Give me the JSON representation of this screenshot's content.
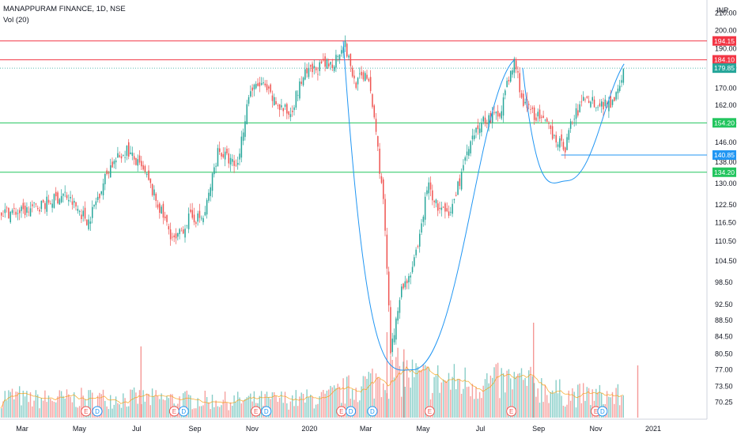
{
  "header": {
    "symbol_line": "MANAPPURAM FINANCE, 1D, NSE",
    "volume_line": "Vol (20)"
  },
  "currency": "INR",
  "colors": {
    "up": "#26a69a",
    "down": "#ef5350",
    "resistance": "#f23645",
    "support": "#22c55e",
    "cup_curve": "#2196f3",
    "price_tag": "#26a69a",
    "volume_ma": "#f59e0b"
  },
  "chart_data": {
    "type": "candlestick",
    "title": "MANAPPURAM FINANCE, 1D, NSE",
    "ylabel": "INR",
    "y_scale": "log",
    "ylim": [
      67,
      214
    ],
    "y_ticks": [
      210.0,
      200.0,
      190.0,
      180.0,
      170.0,
      162.0,
      154.0,
      146.0,
      138.0,
      130.0,
      122.5,
      116.5,
      110.5,
      104.5,
      98.5,
      92.5,
      88.5,
      84.5,
      80.5,
      77.0,
      73.5,
      70.25
    ],
    "x_labels": [
      "Mar",
      "May",
      "Jul",
      "Sep",
      "Nov",
      "2020",
      "Mar",
      "May",
      "Jul",
      "Sep",
      "Nov",
      "2021"
    ],
    "price_path": [
      {
        "date": "2019-03-01",
        "price": 120
      },
      {
        "date": "2019-03-25",
        "price": 123
      },
      {
        "date": "2019-04-15",
        "price": 126
      },
      {
        "date": "2019-05-10",
        "price": 117
      },
      {
        "date": "2019-06-01",
        "price": 136
      },
      {
        "date": "2019-06-20",
        "price": 143
      },
      {
        "date": "2019-07-10",
        "price": 133
      },
      {
        "date": "2019-07-25",
        "price": 121
      },
      {
        "date": "2019-08-10",
        "price": 110
      },
      {
        "date": "2019-08-25",
        "price": 118
      },
      {
        "date": "2019-09-10",
        "price": 118
      },
      {
        "date": "2019-09-25",
        "price": 143
      },
      {
        "date": "2019-10-15",
        "price": 136
      },
      {
        "date": "2019-10-28",
        "price": 168
      },
      {
        "date": "2019-11-10",
        "price": 172
      },
      {
        "date": "2019-11-25",
        "price": 163
      },
      {
        "date": "2019-12-10",
        "price": 158
      },
      {
        "date": "2019-12-25",
        "price": 176
      },
      {
        "date": "2020-01-10",
        "price": 180
      },
      {
        "date": "2020-01-25",
        "price": 182
      },
      {
        "date": "2020-02-06",
        "price": 194
      },
      {
        "date": "2020-02-18",
        "price": 172
      },
      {
        "date": "2020-03-01",
        "price": 178
      },
      {
        "date": "2020-03-10",
        "price": 155
      },
      {
        "date": "2020-03-20",
        "price": 120
      },
      {
        "date": "2020-03-27",
        "price": 80
      },
      {
        "date": "2020-04-05",
        "price": 95
      },
      {
        "date": "2020-04-18",
        "price": 102
      },
      {
        "date": "2020-04-25",
        "price": 108
      },
      {
        "date": "2020-05-05",
        "price": 130
      },
      {
        "date": "2020-05-15",
        "price": 122
      },
      {
        "date": "2020-05-28",
        "price": 118
      },
      {
        "date": "2020-06-15",
        "price": 140
      },
      {
        "date": "2020-07-01",
        "price": 155
      },
      {
        "date": "2020-07-20",
        "price": 158
      },
      {
        "date": "2020-08-06",
        "price": 184
      },
      {
        "date": "2020-08-15",
        "price": 162
      },
      {
        "date": "2020-08-30",
        "price": 157
      },
      {
        "date": "2020-09-15",
        "price": 150
      },
      {
        "date": "2020-09-28",
        "price": 143
      },
      {
        "date": "2020-10-05",
        "price": 154
      },
      {
        "date": "2020-10-20",
        "price": 166
      },
      {
        "date": "2020-11-05",
        "price": 162
      },
      {
        "date": "2020-11-18",
        "price": 164
      },
      {
        "date": "2020-12-01",
        "price": 179.85
      }
    ],
    "volume_shape": [
      {
        "date": "2019-03-01",
        "v": 0.24
      },
      {
        "date": "2019-06-15",
        "v": 0.26
      },
      {
        "date": "2019-10-01",
        "v": 0.22
      },
      {
        "date": "2020-01-15",
        "v": 0.25
      },
      {
        "date": "2020-03-01",
        "v": 0.45
      },
      {
        "date": "2020-04-01",
        "v": 0.6
      },
      {
        "date": "2020-05-01",
        "v": 0.5
      },
      {
        "date": "2020-07-01",
        "v": 0.45
      },
      {
        "date": "2020-08-10",
        "v": 0.48
      },
      {
        "date": "2020-10-01",
        "v": 0.3
      },
      {
        "date": "2020-12-01",
        "v": 0.28
      }
    ],
    "volume_spikes": [
      {
        "date": "2019-07-05",
        "v": 0.75,
        "color": "down"
      },
      {
        "date": "2020-03-23",
        "v": 0.9,
        "color": "down"
      },
      {
        "date": "2020-04-10",
        "v": 0.72,
        "color": "down"
      },
      {
        "date": "2020-08-26",
        "v": 1.0,
        "color": "down"
      },
      {
        "date": "2020-12-15",
        "v": 0.55,
        "color": "down"
      }
    ],
    "horizontal_levels": [
      {
        "price": 194.15,
        "label": "194.15",
        "kind": "resistance"
      },
      {
        "price": 184.1,
        "label": "184.10",
        "kind": "resistance"
      },
      {
        "price": 179.85,
        "label": "179.85",
        "kind": "last"
      },
      {
        "price": 154.2,
        "label": "154.20",
        "kind": "support"
      },
      {
        "price": 140.85,
        "label": "140.85",
        "kind": "handle"
      },
      {
        "price": 134.2,
        "label": "134.20",
        "kind": "support"
      }
    ],
    "cup_and_handle": {
      "cup": {
        "start_date": "2020-02-06",
        "start_price": 194,
        "bottom_date": "2020-04-20",
        "bottom_price": 77,
        "end_date": "2020-08-06",
        "end_price": 184
      },
      "handle": {
        "start_date": "2020-08-15",
        "start_price": 180,
        "bottom_date": "2020-10-01",
        "bottom_price": 131,
        "end_date": "2020-12-01",
        "end_price": 182
      },
      "handle_line_start": "2020-09-25"
    },
    "earnings_markers": [
      {
        "date": "2019-05-08",
        "label": "E",
        "kind": "earnings"
      },
      {
        "date": "2019-05-20",
        "label": "D",
        "kind": "dividend"
      },
      {
        "date": "2019-08-10",
        "label": "E",
        "kind": "earnings"
      },
      {
        "date": "2019-08-20",
        "label": "D",
        "kind": "dividend"
      },
      {
        "date": "2019-11-05",
        "label": "E",
        "kind": "earnings"
      },
      {
        "date": "2019-11-16",
        "label": "D",
        "kind": "dividend"
      },
      {
        "date": "2020-02-04",
        "label": "E",
        "kind": "earnings"
      },
      {
        "date": "2020-02-14",
        "label": "D",
        "kind": "dividend"
      },
      {
        "date": "2020-03-08",
        "label": "D",
        "kind": "dividend"
      },
      {
        "date": "2020-05-08",
        "label": "E",
        "kind": "earnings"
      },
      {
        "date": "2020-08-03",
        "label": "E",
        "kind": "earnings"
      },
      {
        "date": "2020-11-01",
        "label": "E",
        "kind": "earnings"
      },
      {
        "date": "2020-11-08",
        "label": "D",
        "kind": "dividend"
      }
    ]
  }
}
